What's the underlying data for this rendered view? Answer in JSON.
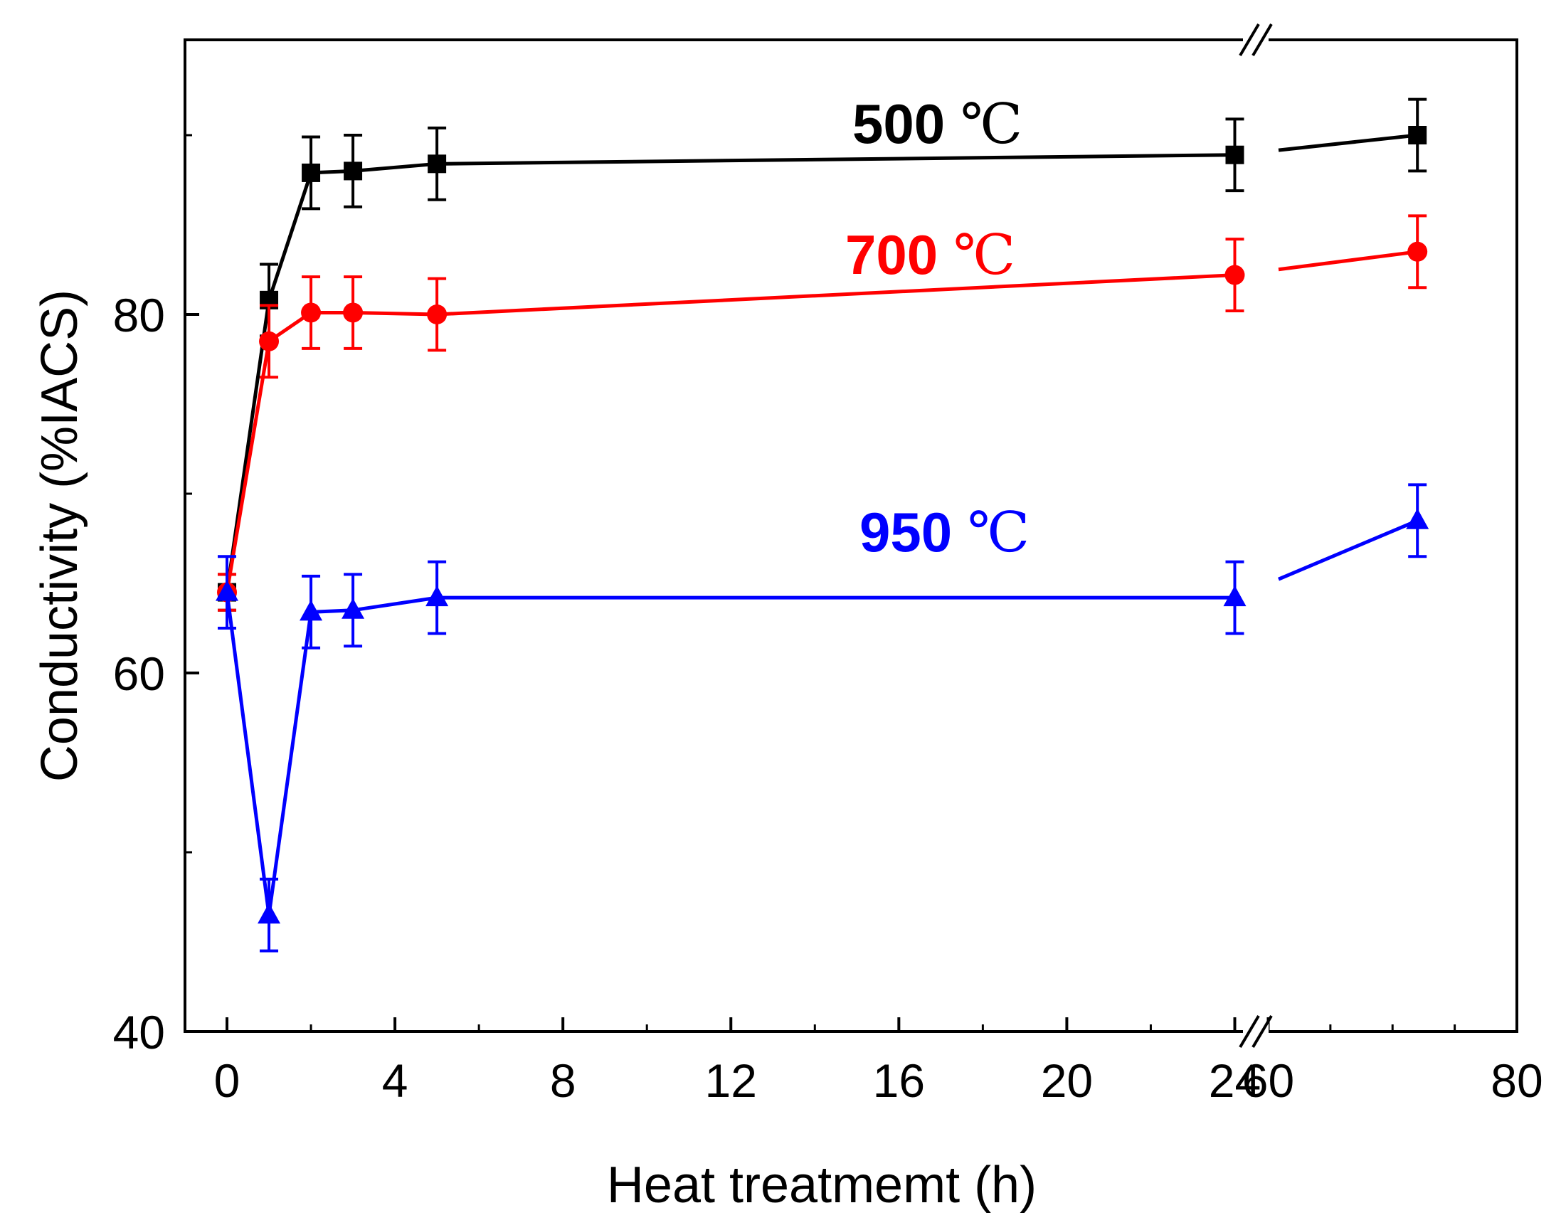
{
  "chart_data": {
    "type": "line",
    "title": "",
    "xlabel": "Heat treatmemt (h)",
    "ylabel": "Conductivity (%IACS)",
    "ylim": [
      40,
      95
    ],
    "x_axis": {
      "broken": true,
      "segment1": {
        "range": [
          -1,
          24.5
        ],
        "ticks": [
          0,
          4,
          8,
          12,
          16,
          20,
          24
        ]
      },
      "segment2": {
        "range": [
          59,
          80
        ],
        "ticks": [
          60,
          80
        ]
      },
      "tick_labels": [
        "0",
        "4",
        "8",
        "12",
        "16",
        "20",
        "24",
        "60",
        "80"
      ]
    },
    "y_ticks": [
      40,
      60,
      80
    ],
    "y_tick_labels": [
      "40",
      "60",
      "80"
    ],
    "series": [
      {
        "name": "500 ℃",
        "label_number": "500",
        "label_unit": "℃",
        "color": "#000000",
        "marker": "square",
        "x": [
          0,
          1,
          2,
          3,
          5,
          24,
          72
        ],
        "values": [
          64.5,
          80.8,
          87.9,
          88.0,
          88.4,
          88.9,
          90.0
        ],
        "errors": [
          1.0,
          2.0,
          2.0,
          2.0,
          2.0,
          2.0,
          2.0
        ]
      },
      {
        "name": "700 ℃",
        "label_number": "700",
        "label_unit": "℃",
        "color": "#ff0000",
        "marker": "circle",
        "x": [
          0,
          1,
          2,
          3,
          5,
          24,
          72
        ],
        "values": [
          64.5,
          78.5,
          80.1,
          80.1,
          80.0,
          82.2,
          83.5
        ],
        "errors": [
          1.0,
          2.0,
          2.0,
          2.0,
          2.0,
          2.0,
          2.0
        ]
      },
      {
        "name": "950 ℃",
        "label_number": "950",
        "label_unit": "℃",
        "color": "#0000ff",
        "marker": "triangle",
        "x": [
          0,
          1,
          2,
          3,
          5,
          24,
          72
        ],
        "values": [
          64.5,
          46.5,
          63.4,
          63.5,
          64.2,
          64.2,
          68.5
        ],
        "errors": [
          2.0,
          2.0,
          2.0,
          2.0,
          2.0,
          2.0,
          2.0
        ]
      }
    ]
  }
}
